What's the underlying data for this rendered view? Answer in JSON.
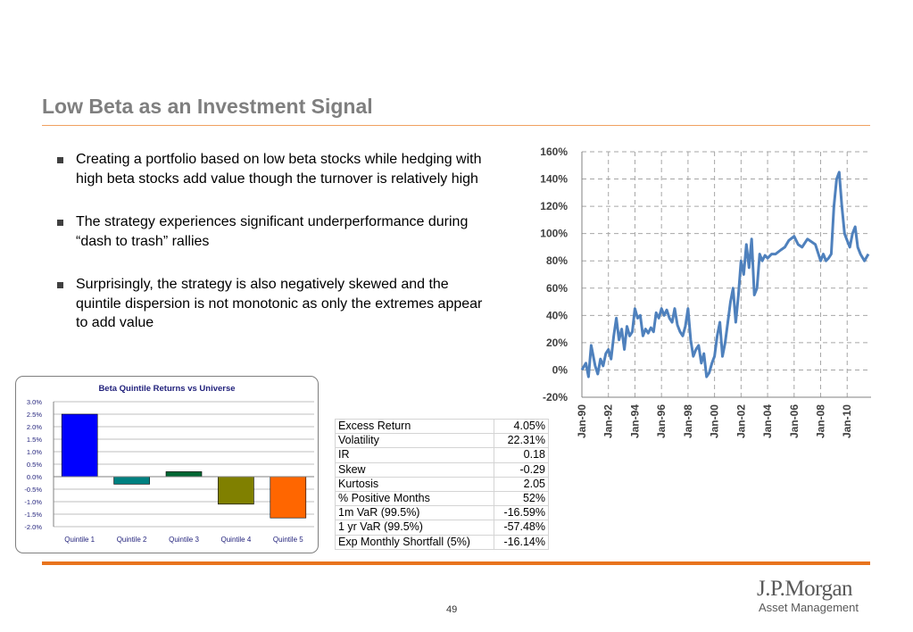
{
  "slide": {
    "title": "Low Beta as an Investment Signal",
    "page_number": "49"
  },
  "bullets": [
    "Creating a portfolio based on low beta stocks while hedging with high beta stocks add value though the turnover is relatively high",
    "The strategy experiences significant underperformance during “dash to trash” rallies",
    "Surprisingly, the strategy is also negatively skewed and the quintile dispersion is not monotonic as only the extremes appear to add value"
  ],
  "stats": [
    {
      "label": "Excess Return",
      "value": "4.05%"
    },
    {
      "label": "Volatility",
      "value": "22.31%"
    },
    {
      "label": "IR",
      "value": "0.18"
    },
    {
      "label": "Skew",
      "value": "-0.29"
    },
    {
      "label": "Kurtosis",
      "value": "2.05"
    },
    {
      "label": "% Positive Months",
      "value": "52%"
    },
    {
      "label": "1m VaR (99.5%)",
      "value": "-16.59%"
    },
    {
      "label": "1 yr VaR (99.5%)",
      "value": "-57.48%"
    },
    {
      "label": "Exp Monthly Shortfall (5%)",
      "value": "-16.14%"
    }
  ],
  "logo": {
    "main": "J.P.Morgan",
    "sub": "Asset Management"
  },
  "colors": {
    "accent": "#e8741e",
    "line": "#4f81bd",
    "title": "#7f7f7f"
  },
  "chart_data": [
    {
      "type": "bar",
      "title": "Beta Quintile Returns vs Universe",
      "categories": [
        "Quintile 1",
        "Quintile 2",
        "Quintile 3",
        "Quintile 4",
        "Quintile 5"
      ],
      "values": [
        2.5,
        -0.3,
        0.2,
        -1.1,
        -1.65
      ],
      "colors": [
        "#0000ff",
        "#008080",
        "#006633",
        "#808000",
        "#ff6600"
      ],
      "ylim": [
        -2.0,
        3.0
      ],
      "yticks": [
        3.0,
        2.5,
        2.0,
        1.5,
        1.0,
        0.5,
        0.0,
        -0.5,
        -1.0,
        -1.5,
        -2.0
      ],
      "ytick_labels": [
        "3.0%",
        "2.5%",
        "2.0%",
        "1.5%",
        "1.0%",
        "0.5%",
        "0.0%",
        "-0.5%",
        "-1.0%",
        "-1.5%",
        "-2.0%"
      ],
      "grid": true
    },
    {
      "type": "line",
      "ylim": [
        -20,
        160
      ],
      "yticks": [
        160,
        140,
        120,
        100,
        80,
        60,
        40,
        20,
        0,
        -20
      ],
      "ytick_labels": [
        "160%",
        "140%",
        "120%",
        "100%",
        "80%",
        "60%",
        "40%",
        "20%",
        "0%",
        "-20%"
      ],
      "xticks": [
        "Jan-90",
        "Jan-92",
        "Jan-94",
        "Jan-96",
        "Jan-98",
        "Jan-00",
        "Jan-02",
        "Jan-04",
        "Jan-06",
        "Jan-08",
        "Jan-10"
      ],
      "xlim": [
        1990,
        2011.8
      ],
      "grid": true,
      "series": [
        {
          "x": [
            1990.0,
            1990.3,
            1990.5,
            1990.7,
            1991.0,
            1991.2,
            1991.4,
            1991.6,
            1991.8,
            1992.0,
            1992.2,
            1992.4,
            1992.6,
            1992.8,
            1993.0,
            1993.2,
            1993.4,
            1993.6,
            1993.8,
            1994.0,
            1994.2,
            1994.4,
            1994.6,
            1994.8,
            1995.0,
            1995.2,
            1995.4,
            1995.6,
            1995.8,
            1996.0,
            1996.2,
            1996.4,
            1996.6,
            1996.8,
            1997.0,
            1997.2,
            1997.4,
            1997.6,
            1997.8,
            1998.0,
            1998.2,
            1998.4,
            1998.6,
            1998.8,
            1999.0,
            1999.2,
            1999.4,
            1999.6,
            1999.8,
            2000.0,
            2000.2,
            2000.4,
            2000.6,
            2000.8,
            2001.0,
            2001.2,
            2001.4,
            2001.6,
            2001.8,
            2002.0,
            2002.2,
            2002.4,
            2002.6,
            2002.8,
            2003.0,
            2003.2,
            2003.4,
            2003.6,
            2003.8,
            2004.0,
            2004.3,
            2004.6,
            2005.0,
            2005.3,
            2005.6,
            2006.0,
            2006.3,
            2006.6,
            2007.0,
            2007.3,
            2007.6,
            2008.0,
            2008.2,
            2008.4,
            2008.6,
            2008.8,
            2009.0,
            2009.2,
            2009.4,
            2009.6,
            2009.8,
            2010.0,
            2010.2,
            2010.4,
            2010.6,
            2010.8,
            2011.0,
            2011.3,
            2011.6
          ],
          "y": [
            0,
            5,
            -5,
            18,
            3,
            -3,
            8,
            3,
            12,
            15,
            8,
            25,
            38,
            22,
            30,
            15,
            32,
            25,
            28,
            45,
            38,
            40,
            25,
            30,
            27,
            31,
            28,
            42,
            38,
            45,
            40,
            44,
            38,
            35,
            45,
            33,
            28,
            25,
            32,
            45,
            22,
            10,
            15,
            18,
            5,
            12,
            -5,
            -2,
            5,
            10,
            25,
            35,
            10,
            20,
            35,
            50,
            60,
            35,
            55,
            80,
            70,
            92,
            75,
            96,
            55,
            60,
            85,
            80,
            84,
            82,
            85,
            85,
            88,
            90,
            95,
            98,
            92,
            90,
            96,
            94,
            92,
            80,
            85,
            80,
            82,
            85,
            120,
            140,
            145,
            120,
            100,
            95,
            90,
            100,
            105,
            90,
            85,
            80,
            85
          ]
        }
      ]
    }
  ]
}
